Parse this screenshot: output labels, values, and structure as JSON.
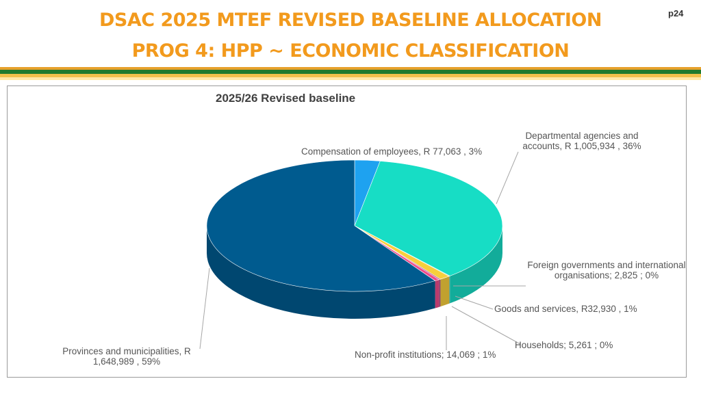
{
  "header": {
    "title_line1": "DSAC 2025 MTEF REVISED BASELINE ALLOCATION",
    "title_line2": "PROG 4:   HPP ~ ECONOMIC CLASSIFICATION",
    "page_number": "p24",
    "stripe_colors": [
      "#e6a12b",
      "#1e7a2e",
      "#f0c04a",
      "#ffe9a8"
    ]
  },
  "chart_data": {
    "type": "pie",
    "title": "2025/26 Revised baseline",
    "slices": [
      {
        "name": "Compensation of employees",
        "value": 77063,
        "percent": 3,
        "color": "#1ea2f0",
        "label": "Compensation of employees, R 77,063 , 3%"
      },
      {
        "name": "Departmental agencies and accounts",
        "value": 1005934,
        "percent": 36,
        "color": "#17ddc5",
        "label": "Departmental agencies and accounts, R 1,005,934 , 36%"
      },
      {
        "name": "Foreign governments and international organisations",
        "value": 2825,
        "percent": 0,
        "color": "#8fd0b0",
        "label": "Foreign governments and international organisations;  2,825 ; 0%"
      },
      {
        "name": "Goods and services",
        "value": 32930,
        "percent": 1,
        "color": "#f7cf3c",
        "label": "Goods and services, R32,930 , 1%"
      },
      {
        "name": "Households",
        "value": 5261,
        "percent": 0,
        "color": "#b14f8c",
        "label": "Households;  5,261 ; 0%"
      },
      {
        "name": "Non-profit institutions",
        "value": 14069,
        "percent": 1,
        "color": "#ef4a8b",
        "label": "Non-profit institutions;  14,069 ; 1%"
      },
      {
        "name": "Provinces and municipalities",
        "value": 1648989,
        "percent": 59,
        "color": "#005b8f",
        "label": "Provinces and municipalities, R 1,648,989 , 59%"
      }
    ]
  }
}
